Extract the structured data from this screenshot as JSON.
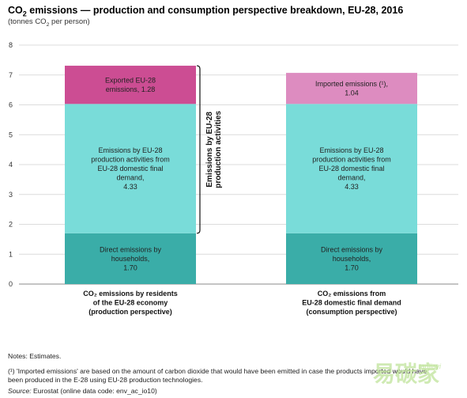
{
  "title": {
    "pre": "CO",
    "sub": "2",
    "post": " emissions — production and consumption perspective breakdown, EU-28, 2016"
  },
  "subtitle": {
    "pre": "(tonnes CO",
    "sub": "2",
    "post": " per person)"
  },
  "chart_data": {
    "type": "bar",
    "stacked": true,
    "ylim": [
      0,
      8
    ],
    "yticks": [
      "0",
      "1",
      "2",
      "3",
      "4",
      "5",
      "6",
      "7",
      "8"
    ],
    "grid": true,
    "categories": [
      [
        "CO₂ emissions  by residents",
        "of the EU-28 economy",
        "(production perspective)"
      ],
      [
        "CO₂ emissions from",
        "EU-28 domestic final demand",
        "(consumption perspective)"
      ]
    ],
    "series": [
      {
        "values": [
          1.7,
          1.7
        ],
        "colors": [
          "#3aada8",
          "#3aada8"
        ],
        "labels": [
          [
            "Direct emissions by",
            "households,",
            "1.70"
          ],
          [
            "Direct emissions by",
            "households,",
            "1.70"
          ]
        ]
      },
      {
        "values": [
          4.33,
          4.33
        ],
        "colors": [
          "#79dcd9",
          "#79dcd9"
        ],
        "labels": [
          [
            "Emissions by EU-28",
            "production activities from",
            "EU-28 domestic final",
            "demand,",
            "4.33"
          ],
          [
            "Emissions by EU-28",
            "production activities from",
            "EU-28 domestic final",
            "demand,",
            "4.33"
          ]
        ]
      },
      {
        "values": [
          1.28,
          1.04
        ],
        "colors": [
          "#cc4d93",
          "#dd8cc0"
        ],
        "labels": [
          [
            "Exported EU-28",
            "emissions, 1.28"
          ],
          [
            "Imported emissions (¹),",
            "1.04"
          ]
        ]
      }
    ],
    "bracket_label": [
      "Emissions by EU-28",
      "production activities"
    ]
  },
  "notes": {
    "line1": "Notes: Estimates.",
    "line2": "(¹) 'Imported emissions' are based on the amount of carbon dioxide that would have been emitted in case the products imported would have",
    "line3": "been produced in the E-28 using EU-28 production technologies.",
    "source_label": "Source:",
    "source_text": " Eurostat (online data code: env_ac_io10)"
  },
  "watermark": {
    "text": "易碳家",
    "sub": "tanjiayi"
  }
}
